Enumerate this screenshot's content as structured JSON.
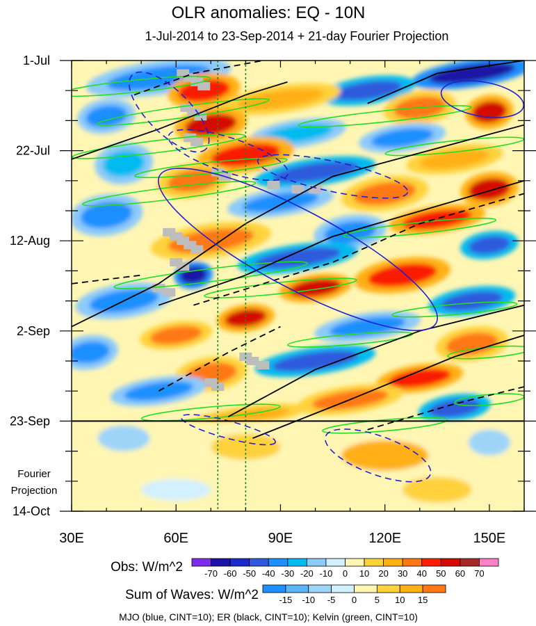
{
  "chart_data": {
    "type": "heatmap",
    "title": "OLR anomalies: EQ - 10N",
    "subtitle": "1-Jul-2014 to 23-Sep-2014 + 21-day Fourier Projection",
    "x_axis": {
      "range": [
        30,
        160
      ],
      "ticks": [
        30,
        60,
        90,
        120,
        150
      ],
      "tick_labels": [
        "30E",
        "60E",
        "90E",
        "120E",
        "150E"
      ]
    },
    "y_axis": {
      "range_days": [
        0,
        105
      ],
      "direction": "time increases downward",
      "ticks": [
        0,
        21,
        42,
        63,
        84,
        105
      ],
      "tick_labels": [
        "1-Jul",
        "22-Jul",
        "12-Aug",
        "2-Sep",
        "23-Sep",
        "14-Oct"
      ],
      "projection_label": [
        "Fourier",
        "Projection"
      ]
    },
    "observation_end_day": 84,
    "reference_longitudes": [
      72,
      80
    ],
    "legends": [
      {
        "label": "Obs: W/m^2",
        "levels": [
          -70,
          -60,
          -50,
          -40,
          -30,
          -20,
          -10,
          0,
          10,
          20,
          30,
          40,
          50,
          60,
          70
        ],
        "colors": [
          "#7e2ee6",
          "#1c12a4",
          "#1c2cc8",
          "#2f5adc",
          "#1e8fff",
          "#00baf0",
          "#8ccafa",
          "#d2f0ff",
          "#fff6b4",
          "#ffd23c",
          "#ffb014",
          "#ff7814",
          "#fa1e00",
          "#d20a00",
          "#a52a2a",
          "#ff82c8"
        ]
      },
      {
        "label": "Sum of Waves: W/m^2",
        "levels": [
          -15,
          -10,
          -5,
          0,
          5,
          10,
          15
        ],
        "colors": [
          "#1e8fff",
          "#5ab4f5",
          "#9ed4f8",
          "#d2f0ff",
          "#fff6b4",
          "#ffd23c",
          "#ffb014",
          "#ff7814"
        ]
      }
    ],
    "footnote": "MJO (blue, CINT=10); ER (black, CINT=10); Kelvin (green, CINT=10)",
    "contour_series": [
      {
        "name": "MJO",
        "color": "#2020d0",
        "interval": 10
      },
      {
        "name": "ER",
        "color": "#000000",
        "interval": 10
      },
      {
        "name": "Kelvin",
        "color": "#22dd22",
        "interval": 10
      }
    ],
    "obs_blobs": [
      [
        55,
        4,
        30,
        5,
        -40
      ],
      [
        145,
        3,
        25,
        4,
        -65
      ],
      [
        68,
        7,
        15,
        5,
        45
      ],
      [
        115,
        7,
        20,
        4,
        -50
      ],
      [
        90,
        9,
        25,
        4,
        25
      ],
      [
        130,
        11,
        15,
        5,
        35
      ],
      [
        150,
        12,
        10,
        5,
        50
      ],
      [
        40,
        13,
        12,
        5,
        -35
      ],
      [
        70,
        15,
        15,
        5,
        55
      ],
      [
        95,
        17,
        20,
        4,
        -30
      ],
      [
        125,
        18,
        18,
        4,
        -40
      ],
      [
        80,
        22,
        20,
        5,
        40
      ],
      [
        140,
        23,
        20,
        4,
        25
      ],
      [
        45,
        24,
        12,
        6,
        -30
      ],
      [
        100,
        26,
        25,
        4,
        -45
      ],
      [
        65,
        28,
        15,
        5,
        35
      ],
      [
        150,
        30,
        12,
        5,
        50
      ],
      [
        120,
        31,
        18,
        5,
        35
      ],
      [
        90,
        33,
        22,
        4,
        -35
      ],
      [
        40,
        36,
        15,
        6,
        -40
      ],
      [
        135,
        37,
        20,
        4,
        45
      ],
      [
        110,
        40,
        15,
        5,
        -40
      ],
      [
        70,
        42,
        25,
        5,
        30
      ],
      [
        150,
        43,
        12,
        4,
        -45
      ],
      [
        95,
        46,
        25,
        4,
        -45
      ],
      [
        65,
        50,
        8,
        4,
        -70
      ],
      [
        125,
        50,
        20,
        5,
        40
      ],
      [
        100,
        53,
        15,
        4,
        50
      ],
      [
        45,
        56,
        20,
        5,
        -40
      ],
      [
        145,
        56,
        18,
        4,
        -45
      ],
      [
        80,
        60,
        12,
        4,
        50
      ],
      [
        115,
        62,
        22,
        4,
        -40
      ],
      [
        60,
        64,
        15,
        4,
        35
      ],
      [
        145,
        66,
        15,
        5,
        35
      ],
      [
        35,
        68,
        12,
        5,
        -40
      ],
      [
        100,
        70,
        25,
        4,
        -50
      ],
      [
        70,
        73,
        15,
        5,
        30
      ],
      [
        130,
        74,
        18,
        4,
        40
      ],
      [
        55,
        77,
        20,
        4,
        -35
      ],
      [
        110,
        79,
        22,
        4,
        35
      ],
      [
        140,
        81,
        15,
        4,
        -45
      ],
      [
        80,
        83,
        25,
        3,
        25
      ]
    ],
    "projection_blobs": [
      [
        45,
        88,
        15,
        6,
        -8
      ],
      [
        80,
        90,
        20,
        6,
        6
      ],
      [
        120,
        92,
        25,
        7,
        10
      ],
      [
        150,
        89,
        12,
        6,
        -6
      ],
      [
        60,
        100,
        20,
        5,
        -5
      ],
      [
        135,
        100,
        20,
        6,
        8
      ]
    ],
    "mjo_contours": [
      {
        "cx": 95,
        "cy": 44,
        "rx": 45,
        "ry": 9,
        "angle_deg": 28,
        "dashed": false
      },
      {
        "cx": 75,
        "cy": 22,
        "rx": 18,
        "ry": 4,
        "angle_deg": 18,
        "dashed": true
      },
      {
        "cx": 105,
        "cy": 27,
        "rx": 22,
        "ry": 3.5,
        "angle_deg": 12,
        "dashed": true
      },
      {
        "cx": 58,
        "cy": 12,
        "rx": 15,
        "ry": 5,
        "angle_deg": 45,
        "dashed": true
      },
      {
        "cx": 148,
        "cy": 9,
        "rx": 12,
        "ry": 4,
        "angle_deg": 10,
        "dashed": false
      },
      {
        "cx": 118,
        "cy": 92,
        "rx": 16,
        "ry": 4.5,
        "angle_deg": 20,
        "dashed": true
      },
      {
        "cx": 75,
        "cy": 86,
        "rx": 14,
        "ry": 2,
        "angle_deg": 15,
        "dashed": true
      }
    ],
    "er_contours": [
      {
        "points": [
          [
            30,
            23
          ],
          [
            55,
            16
          ],
          [
            80,
            8
          ],
          [
            92,
            5
          ]
        ],
        "dashed": false
      },
      {
        "points": [
          [
            30,
            62
          ],
          [
            55,
            52
          ],
          [
            80,
            38
          ],
          [
            105,
            27
          ],
          [
            160,
            15
          ]
        ],
        "dashed": false
      },
      {
        "points": [
          [
            55,
            57
          ],
          [
            80,
            50
          ],
          [
            105,
            41
          ],
          [
            160,
            28
          ]
        ],
        "dashed": false
      },
      {
        "points": [
          [
            75,
            83
          ],
          [
            100,
            72
          ],
          [
            130,
            63
          ],
          [
            160,
            57
          ]
        ],
        "dashed": false
      },
      {
        "points": [
          [
            82,
            88
          ],
          [
            110,
            79
          ],
          [
            140,
            69
          ],
          [
            160,
            64
          ]
        ],
        "dashed": false
      },
      {
        "points": [
          [
            115,
            10
          ],
          [
            135,
            3
          ],
          [
            160,
            0
          ]
        ],
        "dashed": false
      },
      {
        "points": [
          [
            55,
            77
          ],
          [
            75,
            68
          ],
          [
            90,
            62
          ]
        ],
        "dashed": true
      },
      {
        "points": [
          [
            65,
            57
          ],
          [
            85,
            52
          ],
          [
            105,
            47
          ],
          [
            130,
            38
          ],
          [
            160,
            31
          ]
        ],
        "dashed": true
      },
      {
        "points": [
          [
            48,
            8
          ],
          [
            65,
            3
          ],
          [
            85,
            0
          ]
        ],
        "dashed": true
      },
      {
        "points": [
          [
            115,
            86
          ],
          [
            140,
            80
          ],
          [
            160,
            76
          ]
        ],
        "dashed": true
      },
      {
        "points": [
          [
            30,
            52
          ],
          [
            50,
            50
          ]
        ],
        "dashed": true
      }
    ],
    "kelvin_contours": [
      {
        "cx": 48,
        "cy": 6,
        "rx": 22,
        "ry": 1.4,
        "angle_deg": -6
      },
      {
        "cx": 62,
        "cy": 12,
        "rx": 25,
        "ry": 1.3,
        "angle_deg": -8
      },
      {
        "cx": 55,
        "cy": 20,
        "rx": 25,
        "ry": 1.4,
        "angle_deg": -7
      },
      {
        "cx": 70,
        "cy": 25,
        "rx": 22,
        "ry": 1.3,
        "angle_deg": -6
      },
      {
        "cx": 58,
        "cy": 31,
        "rx": 25,
        "ry": 1.4,
        "angle_deg": -7
      },
      {
        "cx": 70,
        "cy": 50,
        "rx": 28,
        "ry": 1.5,
        "angle_deg": -7
      },
      {
        "cx": 90,
        "cy": 53,
        "rx": 22,
        "ry": 1.3,
        "angle_deg": -6
      },
      {
        "cx": 120,
        "cy": 13,
        "rx": 25,
        "ry": 1.3,
        "angle_deg": -6
      },
      {
        "cx": 140,
        "cy": 20,
        "rx": 20,
        "ry": 1.3,
        "angle_deg": -6
      },
      {
        "cx": 130,
        "cy": 39,
        "rx": 22,
        "ry": 1.3,
        "angle_deg": -6
      },
      {
        "cx": 140,
        "cy": 58,
        "rx": 18,
        "ry": 1.2,
        "angle_deg": -5
      },
      {
        "cx": 150,
        "cy": 68,
        "rx": 12,
        "ry": 1.2,
        "angle_deg": -5
      },
      {
        "cx": 110,
        "cy": 65,
        "rx": 18,
        "ry": 1.2,
        "angle_deg": -5
      },
      {
        "cx": 70,
        "cy": 82,
        "rx": 20,
        "ry": 1.3,
        "angle_deg": -5
      },
      {
        "cx": 120,
        "cy": 85,
        "rx": 18,
        "ry": 1.3,
        "angle_deg": -5
      },
      {
        "cx": 150,
        "cy": 79,
        "rx": 10,
        "ry": 1.2,
        "angle_deg": -5
      }
    ],
    "missing_data_cells": [
      [
        62,
        3
      ],
      [
        64,
        4
      ],
      [
        66,
        5
      ],
      [
        68,
        6
      ],
      [
        63,
        11
      ],
      [
        65,
        12
      ],
      [
        67,
        13
      ],
      [
        64,
        18
      ],
      [
        66,
        19
      ],
      [
        72,
        26
      ],
      [
        74,
        27
      ],
      [
        88,
        29
      ],
      [
        95,
        30
      ],
      [
        100,
        30
      ],
      [
        58,
        40
      ],
      [
        60,
        41
      ],
      [
        62,
        42
      ],
      [
        64,
        43
      ],
      [
        66,
        44
      ],
      [
        60,
        47
      ],
      [
        62,
        48
      ],
      [
        55,
        53
      ],
      [
        58,
        54
      ],
      [
        80,
        69
      ],
      [
        82,
        70
      ],
      [
        85,
        71
      ],
      [
        70,
        75
      ],
      [
        72,
        76
      ]
    ]
  }
}
